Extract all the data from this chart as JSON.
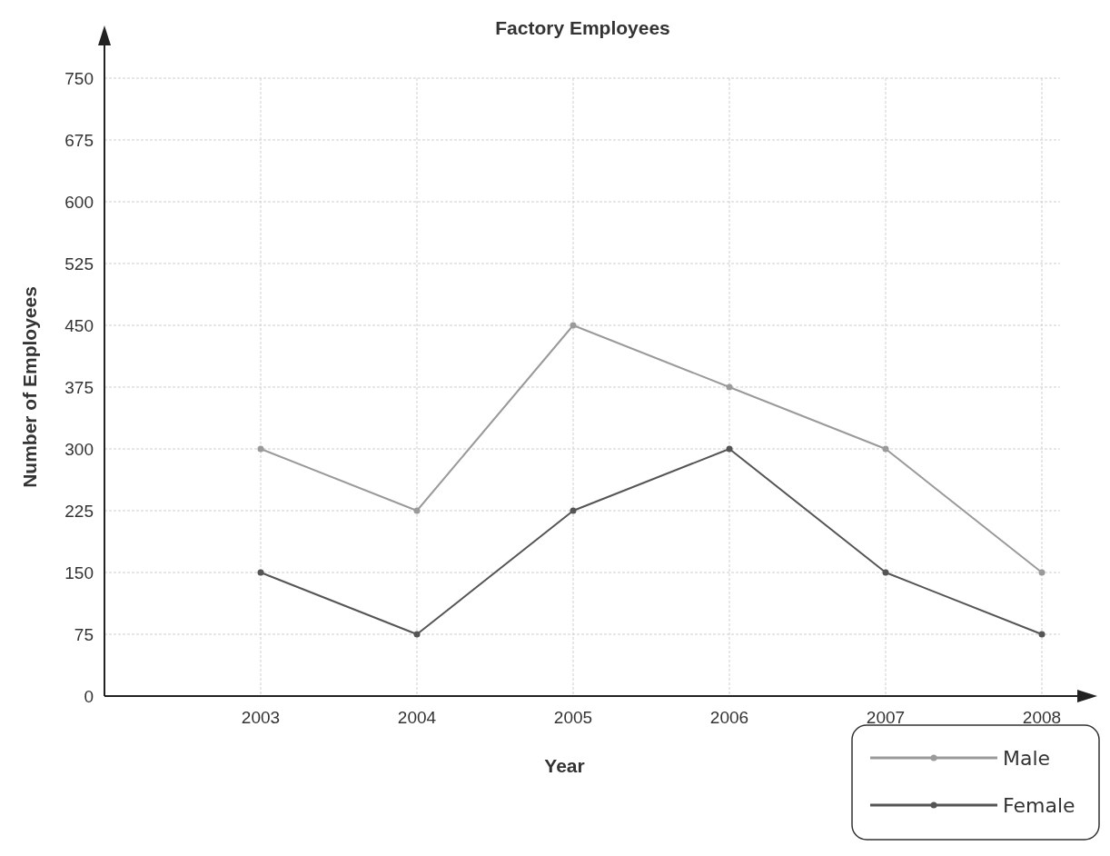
{
  "chart_data": {
    "type": "line",
    "title": "Factory Employees",
    "xlabel": "Year",
    "ylabel": "Number of Employees",
    "categories": [
      "2003",
      "2004",
      "2005",
      "2006",
      "2007",
      "2008"
    ],
    "series": [
      {
        "name": "Male",
        "color": "#9a9a9a",
        "values": [
          300,
          225,
          450,
          375,
          300,
          150
        ]
      },
      {
        "name": "Female",
        "color": "#555555",
        "values": [
          150,
          75,
          225,
          300,
          150,
          75
        ]
      }
    ],
    "ylim": [
      0,
      750
    ],
    "yticks": [
      0,
      75,
      150,
      225,
      300,
      375,
      450,
      525,
      600,
      675,
      750
    ],
    "grid": true,
    "legend": "bottom right",
    "marker": "circle",
    "line_style": "solid"
  }
}
